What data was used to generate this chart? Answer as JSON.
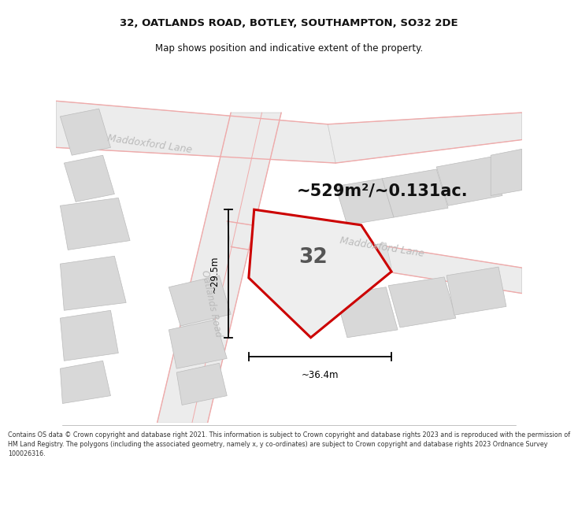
{
  "title_line1": "32, OATLANDS ROAD, BOTLEY, SOUTHAMPTON, SO32 2DE",
  "title_line2": "Map shows position and indicative extent of the property.",
  "area_label": "~529m²/~0.131ac.",
  "property_number": "32",
  "dim_vertical": "~29.5m",
  "dim_horizontal": "~36.4m",
  "road_label_upper": "Maddoxford Lane",
  "road_label_lower": "Maddoxford Lane",
  "road_label_oat": "Oatlands Road",
  "copyright_text": "Contains OS data © Crown copyright and database right 2021. This information is subject to Crown copyright and database rights 2023 and is reproduced with the permission of\nHM Land Registry. The polygons (including the associated geometry, namely x, y co-ordinates) are subject to Crown copyright and database rights 2023 Ordnance Survey\n100026316.",
  "bg_color": "#ffffff",
  "pink": "#f0aaaa",
  "red": "#cc0000",
  "gray_bldg": "#d8d8d8",
  "road_fill": "#ececec",
  "prop_fill": "#eeeeee",
  "road_text": "#bbbbbb",
  "area_text": "#111111",
  "num_color": "#555555",
  "title_color": "#111111",
  "copy_color": "#333333",
  "dim_color": "#000000"
}
